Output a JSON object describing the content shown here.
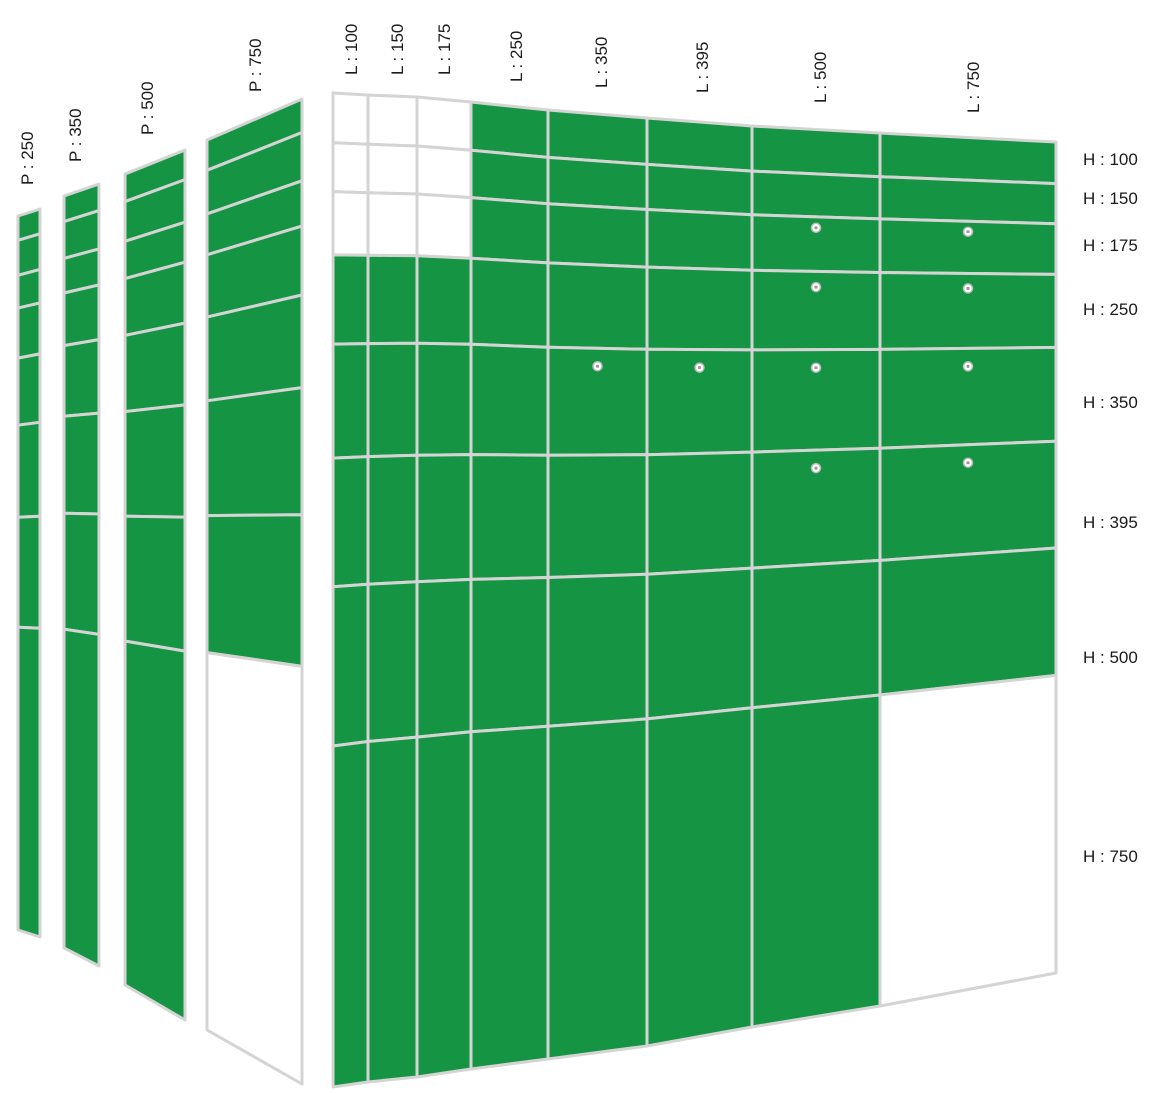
{
  "colors": {
    "panel": "#159443",
    "frame": "#d4d4d4",
    "background": "#ffffff"
  },
  "side_depths": [
    {
      "label": "P : 250",
      "rows": [
        1,
        1,
        1,
        1,
        1,
        1,
        1,
        1
      ]
    },
    {
      "label": "P : 350",
      "rows": [
        1,
        1,
        1,
        1,
        1,
        1,
        1,
        1
      ]
    },
    {
      "label": "P : 500",
      "rows": [
        1,
        1,
        1,
        1,
        1,
        1,
        1,
        1
      ]
    },
    {
      "label": "P : 750",
      "rows": [
        1,
        1,
        1,
        1,
        1,
        1,
        1,
        0
      ]
    }
  ],
  "widths": [
    {
      "label": "L : 100"
    },
    {
      "label": "L : 150"
    },
    {
      "label": "L : 175"
    },
    {
      "label": "L : 250"
    },
    {
      "label": "L : 350"
    },
    {
      "label": "L : 395"
    },
    {
      "label": "L : 500"
    },
    {
      "label": "L : 750"
    }
  ],
  "heights": [
    {
      "label": "H : 100"
    },
    {
      "label": "H : 150"
    },
    {
      "label": "H : 175"
    },
    {
      "label": "H : 250"
    },
    {
      "label": "H : 350"
    },
    {
      "label": "H : 395"
    },
    {
      "label": "H : 500"
    },
    {
      "label": "H : 750"
    }
  ],
  "front_grid": [
    [
      0,
      0,
      0,
      1,
      1,
      1,
      1,
      1
    ],
    [
      0,
      0,
      0,
      1,
      1,
      1,
      1,
      1
    ],
    [
      0,
      0,
      0,
      1,
      1,
      1,
      1,
      1
    ],
    [
      1,
      1,
      1,
      1,
      1,
      1,
      1,
      1
    ],
    [
      1,
      1,
      1,
      1,
      1,
      1,
      1,
      1
    ],
    [
      1,
      1,
      1,
      1,
      1,
      1,
      1,
      1
    ],
    [
      1,
      1,
      1,
      1,
      1,
      1,
      1,
      1
    ],
    [
      1,
      1,
      1,
      1,
      1,
      1,
      1,
      0
    ]
  ],
  "hinge_dots": [
    [
      2,
      6
    ],
    [
      2,
      7
    ],
    [
      3,
      6
    ],
    [
      3,
      7
    ],
    [
      4,
      4
    ],
    [
      4,
      5
    ],
    [
      4,
      6
    ],
    [
      4,
      7
    ],
    [
      5,
      6
    ],
    [
      5,
      7
    ]
  ]
}
